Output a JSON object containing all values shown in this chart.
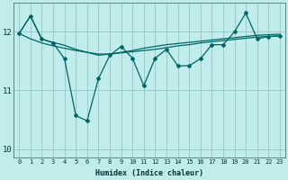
{
  "xlabel": "Humidex (Indice chaleur)",
  "background_color": "#c0ecec",
  "grid_color": "#99cccc",
  "line_color": "#006666",
  "xlim": [
    -0.5,
    23.5
  ],
  "ylim": [
    9.85,
    12.5
  ],
  "yticks": [
    10,
    11,
    12
  ],
  "xticks": [
    0,
    1,
    2,
    3,
    4,
    5,
    6,
    7,
    8,
    9,
    10,
    11,
    12,
    13,
    14,
    15,
    16,
    17,
    18,
    19,
    20,
    21,
    22,
    23
  ],
  "series1": [
    11.97,
    12.27,
    11.87,
    11.82,
    11.77,
    11.7,
    11.65,
    11.6,
    11.62,
    11.65,
    11.68,
    11.72,
    11.75,
    11.78,
    11.8,
    11.82,
    11.84,
    11.86,
    11.88,
    11.9,
    11.92,
    11.94,
    11.95,
    11.96
  ],
  "series2": [
    11.97,
    11.88,
    11.81,
    11.76,
    11.72,
    11.68,
    11.65,
    11.62,
    11.62,
    11.64,
    11.66,
    11.68,
    11.7,
    11.73,
    11.76,
    11.78,
    11.81,
    11.83,
    11.85,
    11.87,
    11.89,
    11.91,
    11.92,
    11.93
  ],
  "series3": [
    11.97,
    12.27,
    11.88,
    11.81,
    11.54,
    10.57,
    10.48,
    11.2,
    11.6,
    11.75,
    11.55,
    11.08,
    11.55,
    11.7,
    11.42,
    11.42,
    11.54,
    11.78,
    11.78,
    12.0,
    12.32,
    11.88,
    11.92,
    11.93
  ]
}
